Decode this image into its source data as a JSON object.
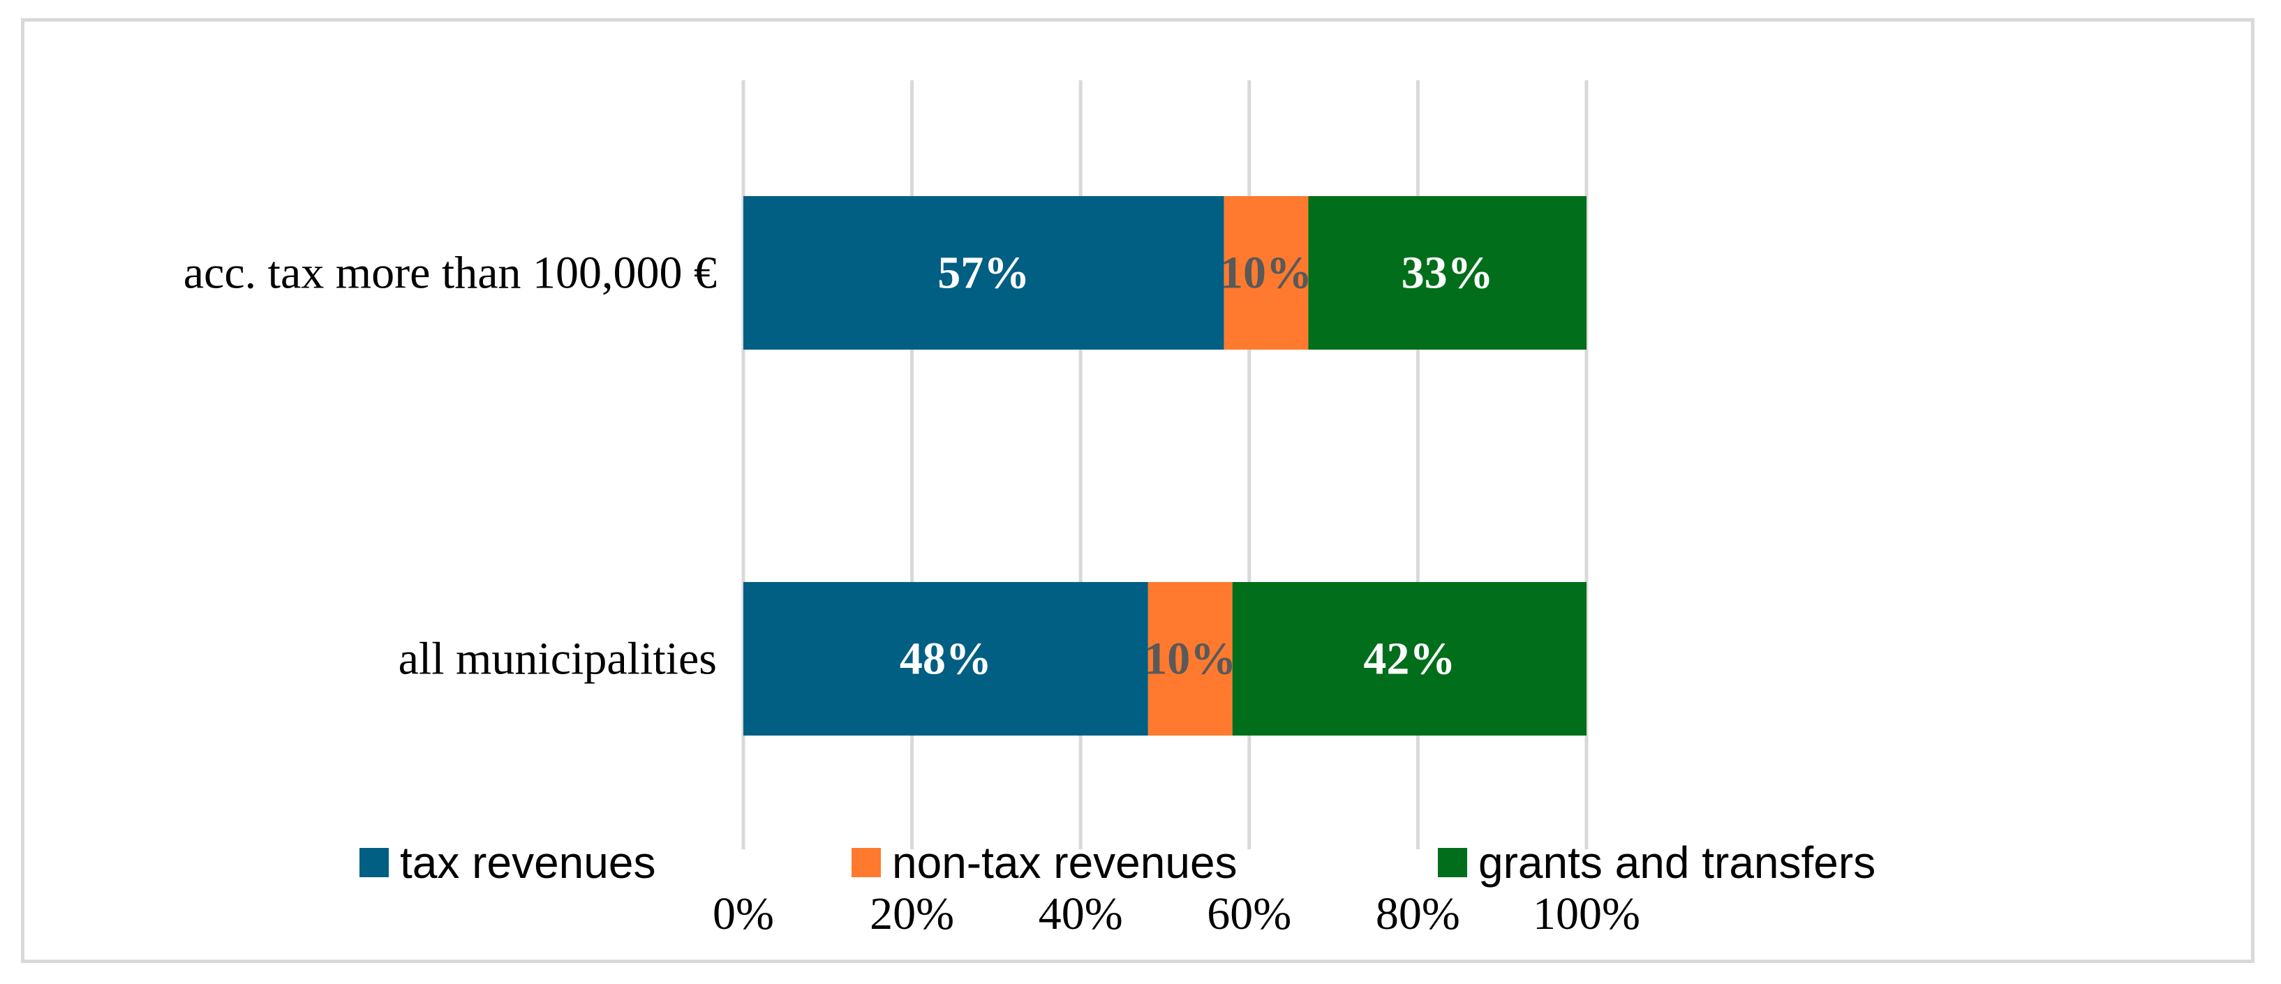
{
  "chart_data": {
    "type": "bar",
    "orientation": "horizontal",
    "stacked": true,
    "categories": [
      "acc. tax more than 100,000 €",
      "all municipalities"
    ],
    "series": [
      {
        "name": "tax revenues",
        "values": [
          57,
          48
        ],
        "labels": [
          "57%",
          "48%"
        ],
        "color": "#005f83",
        "label_color": "#ffffff"
      },
      {
        "name": "non-tax revenues",
        "values": [
          10,
          10
        ],
        "labels": [
          "10%",
          "10%"
        ],
        "color": "#ff7a2e",
        "label_color": "#595959"
      },
      {
        "name": "grants and transfers",
        "values": [
          33,
          42
        ],
        "labels": [
          "33%",
          "42%"
        ],
        "color": "#006e1a",
        "label_color": "#ffffff"
      }
    ],
    "xlim": [
      0,
      100
    ],
    "xticks": [
      "0%",
      "20%",
      "40%",
      "60%",
      "80%",
      "100%"
    ],
    "grid": true,
    "legend": "bottom",
    "title": "",
    "xlabel": "",
    "ylabel": ""
  }
}
